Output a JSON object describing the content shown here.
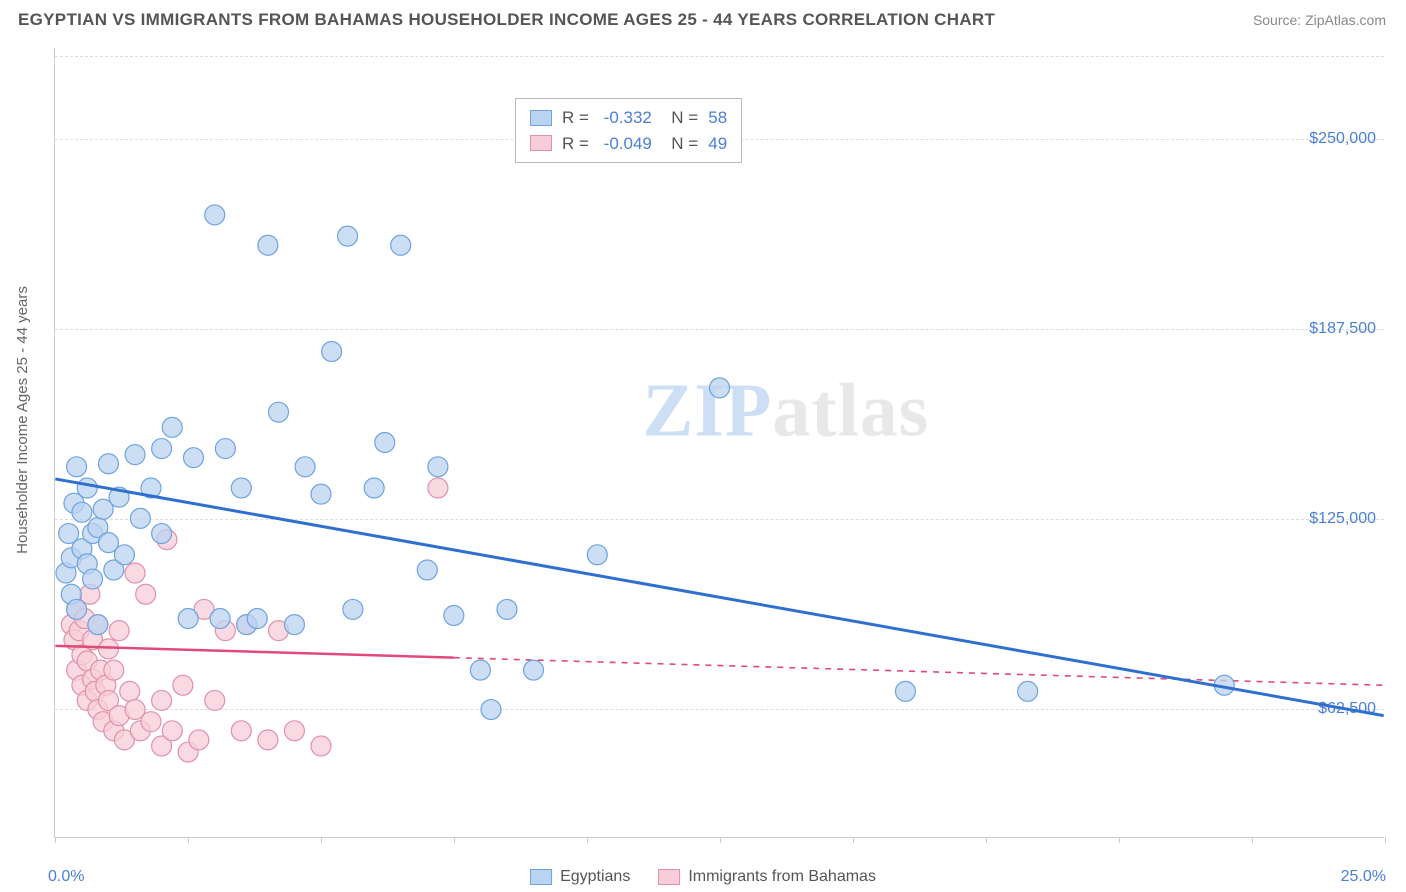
{
  "title": "EGYPTIAN VS IMMIGRANTS FROM BAHAMAS HOUSEHOLDER INCOME AGES 25 - 44 YEARS CORRELATION CHART",
  "source": "Source: ZipAtlas.com",
  "y_axis_label": "Householder Income Ages 25 - 44 years",
  "x_range": {
    "min_label": "0.0%",
    "max_label": "25.0%",
    "min": 0,
    "max": 25
  },
  "y_range": {
    "min": 20000,
    "max": 280000
  },
  "y_ticks": [
    {
      "value": 62500,
      "label": "$62,500"
    },
    {
      "value": 125000,
      "label": "$125,000"
    },
    {
      "value": 187500,
      "label": "$187,500"
    },
    {
      "value": 250000,
      "label": "$250,000"
    }
  ],
  "x_tick_values": [
    0,
    2.5,
    5,
    7.5,
    10,
    12.5,
    15,
    17.5,
    20,
    22.5,
    25
  ],
  "watermark": "ZIPatlas",
  "series": {
    "a": {
      "name": "Egyptians",
      "R": "-0.332",
      "N": "58",
      "fill": "#b9d3f0",
      "stroke": "#6fa3df",
      "line_color": "#2f6fd0",
      "regression": {
        "x1": 0,
        "y1": 138000,
        "x2": 25,
        "y2": 60000,
        "solid_until_x": 25
      },
      "marker_radius": 10,
      "points": [
        [
          0.2,
          107000
        ],
        [
          0.25,
          120000
        ],
        [
          0.3,
          112000
        ],
        [
          0.3,
          100000
        ],
        [
          0.35,
          130000
        ],
        [
          0.4,
          95000
        ],
        [
          0.4,
          142000
        ],
        [
          0.5,
          115000
        ],
        [
          0.5,
          127000
        ],
        [
          0.6,
          110000
        ],
        [
          0.6,
          135000
        ],
        [
          0.7,
          120000
        ],
        [
          0.7,
          105000
        ],
        [
          0.8,
          122000
        ],
        [
          0.8,
          90000
        ],
        [
          0.9,
          128000
        ],
        [
          1.0,
          117000
        ],
        [
          1.0,
          143000
        ],
        [
          1.1,
          108000
        ],
        [
          1.2,
          132000
        ],
        [
          1.3,
          113000
        ],
        [
          1.5,
          146000
        ],
        [
          1.6,
          125000
        ],
        [
          1.8,
          135000
        ],
        [
          2.0,
          148000
        ],
        [
          2.0,
          120000
        ],
        [
          2.2,
          155000
        ],
        [
          2.5,
          92000
        ],
        [
          2.6,
          145000
        ],
        [
          3.0,
          225000
        ],
        [
          3.1,
          92000
        ],
        [
          3.2,
          148000
        ],
        [
          3.5,
          135000
        ],
        [
          3.6,
          90000
        ],
        [
          3.8,
          92000
        ],
        [
          4.0,
          215000
        ],
        [
          4.2,
          160000
        ],
        [
          4.5,
          90000
        ],
        [
          4.7,
          142000
        ],
        [
          5.0,
          133000
        ],
        [
          5.2,
          180000
        ],
        [
          5.5,
          218000
        ],
        [
          5.6,
          95000
        ],
        [
          6.0,
          135000
        ],
        [
          6.2,
          150000
        ],
        [
          6.5,
          215000
        ],
        [
          7.0,
          108000
        ],
        [
          7.2,
          142000
        ],
        [
          7.5,
          93000
        ],
        [
          8.0,
          75000
        ],
        [
          8.2,
          62000
        ],
        [
          8.5,
          95000
        ],
        [
          9.0,
          75000
        ],
        [
          10.2,
          113000
        ],
        [
          12.5,
          168000
        ],
        [
          16.0,
          68000
        ],
        [
          18.3,
          68000
        ],
        [
          22.0,
          70000
        ]
      ]
    },
    "b": {
      "name": "Immigrants from Bahamas",
      "R": "-0.049",
      "N": "49",
      "fill": "#f7cdd9",
      "stroke": "#e290aa",
      "line_color": "#e04a78",
      "regression": {
        "x1": 0,
        "y1": 83000,
        "x2": 25,
        "y2": 70000,
        "solid_until_x": 7.5
      },
      "marker_radius": 10,
      "points": [
        [
          0.3,
          90000
        ],
        [
          0.35,
          85000
        ],
        [
          0.4,
          95000
        ],
        [
          0.4,
          75000
        ],
        [
          0.45,
          88000
        ],
        [
          0.5,
          80000
        ],
        [
          0.5,
          70000
        ],
        [
          0.55,
          92000
        ],
        [
          0.6,
          65000
        ],
        [
          0.6,
          78000
        ],
        [
          0.65,
          100000
        ],
        [
          0.7,
          72000
        ],
        [
          0.7,
          85000
        ],
        [
          0.75,
          68000
        ],
        [
          0.8,
          62000
        ],
        [
          0.8,
          90000
        ],
        [
          0.85,
          75000
        ],
        [
          0.9,
          58000
        ],
        [
          0.95,
          70000
        ],
        [
          1.0,
          65000
        ],
        [
          1.0,
          82000
        ],
        [
          1.1,
          55000
        ],
        [
          1.1,
          75000
        ],
        [
          1.2,
          60000
        ],
        [
          1.2,
          88000
        ],
        [
          1.3,
          52000
        ],
        [
          1.4,
          68000
        ],
        [
          1.5,
          107000
        ],
        [
          1.5,
          62000
        ],
        [
          1.6,
          55000
        ],
        [
          1.7,
          100000
        ],
        [
          1.8,
          58000
        ],
        [
          2.0,
          50000
        ],
        [
          2.0,
          65000
        ],
        [
          2.1,
          118000
        ],
        [
          2.2,
          55000
        ],
        [
          2.4,
          70000
        ],
        [
          2.5,
          48000
        ],
        [
          2.7,
          52000
        ],
        [
          2.8,
          95000
        ],
        [
          3.0,
          65000
        ],
        [
          3.2,
          88000
        ],
        [
          3.5,
          55000
        ],
        [
          3.6,
          90000
        ],
        [
          4.0,
          52000
        ],
        [
          4.2,
          88000
        ],
        [
          4.5,
          55000
        ],
        [
          5.0,
          50000
        ],
        [
          7.2,
          135000
        ]
      ]
    }
  },
  "colors": {
    "text_muted": "#555555",
    "axis_value": "#4a7fd8",
    "grid": "#dddddd",
    "border": "#cccccc"
  }
}
